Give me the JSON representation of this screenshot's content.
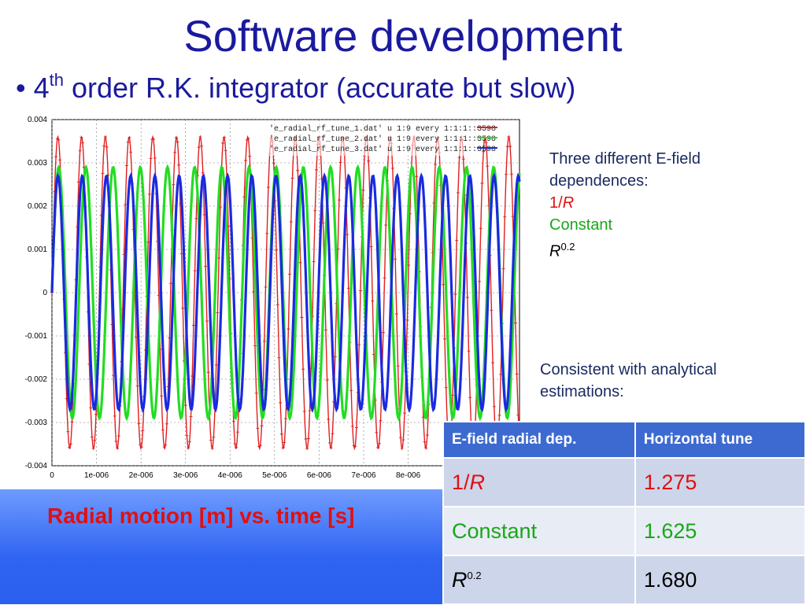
{
  "title": "Software development",
  "bullet": {
    "prefix": "4",
    "sup": "th",
    "text": " order R.K. integrator (accurate but slow)"
  },
  "caption": "Radial motion [m] vs. time [s]",
  "note1": {
    "line1": "Three different E-field",
    "line2": "dependences:",
    "item_1r_pre": "1/",
    "item_1r_var": "R",
    "item_const": "Constant",
    "item_r02_var": "R",
    "item_r02_exp": "0.2"
  },
  "note2": {
    "line1": "Consistent with analytical",
    "line2": "estimations:"
  },
  "table": {
    "headers": [
      "E-field radial dep.",
      "Horizontal tune"
    ],
    "rows": [
      {
        "dep_pre": "1/",
        "dep_var": "R",
        "dep_exp": "",
        "tune": "1.275",
        "color": "#e01010"
      },
      {
        "dep_pre": "Constant",
        "dep_var": "",
        "dep_exp": "",
        "tune": "1.625",
        "color": "#18a818"
      },
      {
        "dep_pre": "",
        "dep_var": "R",
        "dep_exp": "0.2",
        "tune": "1.680",
        "color": "#000000"
      }
    ]
  },
  "chart_data": {
    "type": "line",
    "xlabel": "",
    "ylabel": "",
    "xlim": [
      0,
      1.05e-05
    ],
    "ylim": [
      -0.004,
      0.004
    ],
    "x_tick_labels": [
      "0",
      "1e-006",
      "2e-006",
      "3e-006",
      "4e-006",
      "5e-006",
      "6e-006",
      "7e-006",
      "8e-006"
    ],
    "y_tick_labels": [
      "0.004",
      "0.003",
      "0.002",
      "0.001",
      "0",
      "-0.001",
      "-0.002",
      "-0.003",
      "-0.004"
    ],
    "legend": [
      "'e_radial_rf_tune_1.dat' u 1:9 every 1:1:1::3598",
      "'e_radial_rf_tune_2.dat' u 1:9 every 1:1:1::3598",
      "'e_radial_rf_tune_3.dat' u 1:9 every 1:1:1::3598"
    ],
    "grid": true,
    "series": [
      {
        "color": "#e02020",
        "amplitude": 0.0036,
        "periods_in_xlim": 19.7,
        "marker": "plus"
      },
      {
        "color": "#22dd22",
        "amplitude": 0.0029,
        "periods_in_xlim": 17.2,
        "marker": "dot"
      },
      {
        "color": "#1a2ae0",
        "amplitude": 0.0027,
        "periods_in_xlim": 19.3,
        "marker": "dot"
      }
    ]
  }
}
